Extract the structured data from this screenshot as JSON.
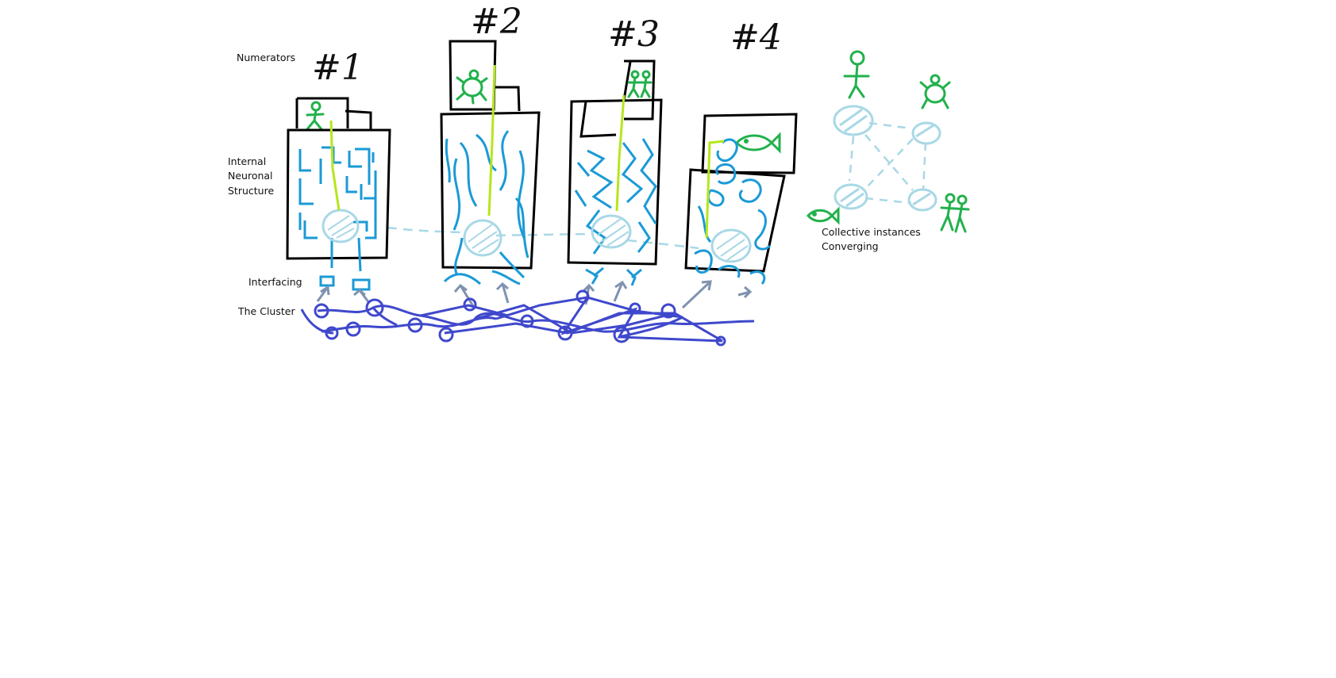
{
  "labels": {
    "numerators": "Numerators",
    "internal_1": "Internal",
    "internal_2": "Neuronal",
    "internal_3": "Structure",
    "interfacing": "Interfacing",
    "cluster": "The Cluster",
    "collective_1": "Collective instances",
    "collective_2": "Converging"
  },
  "instances": [
    {
      "number": "#1",
      "numerator": "stick-figure"
    },
    {
      "number": "#2",
      "numerator": "turtle"
    },
    {
      "number": "#3",
      "numerator": "two-figures"
    },
    {
      "number": "#4",
      "numerator": "fish"
    }
  ],
  "colors": {
    "outline": "#000000",
    "neurons": "#1a9ad6",
    "core": "#a8d8e6",
    "thread": "#b5e61d",
    "figures": "#22b14c",
    "interface": "#7f92b0",
    "cluster": "#3f48cc"
  }
}
